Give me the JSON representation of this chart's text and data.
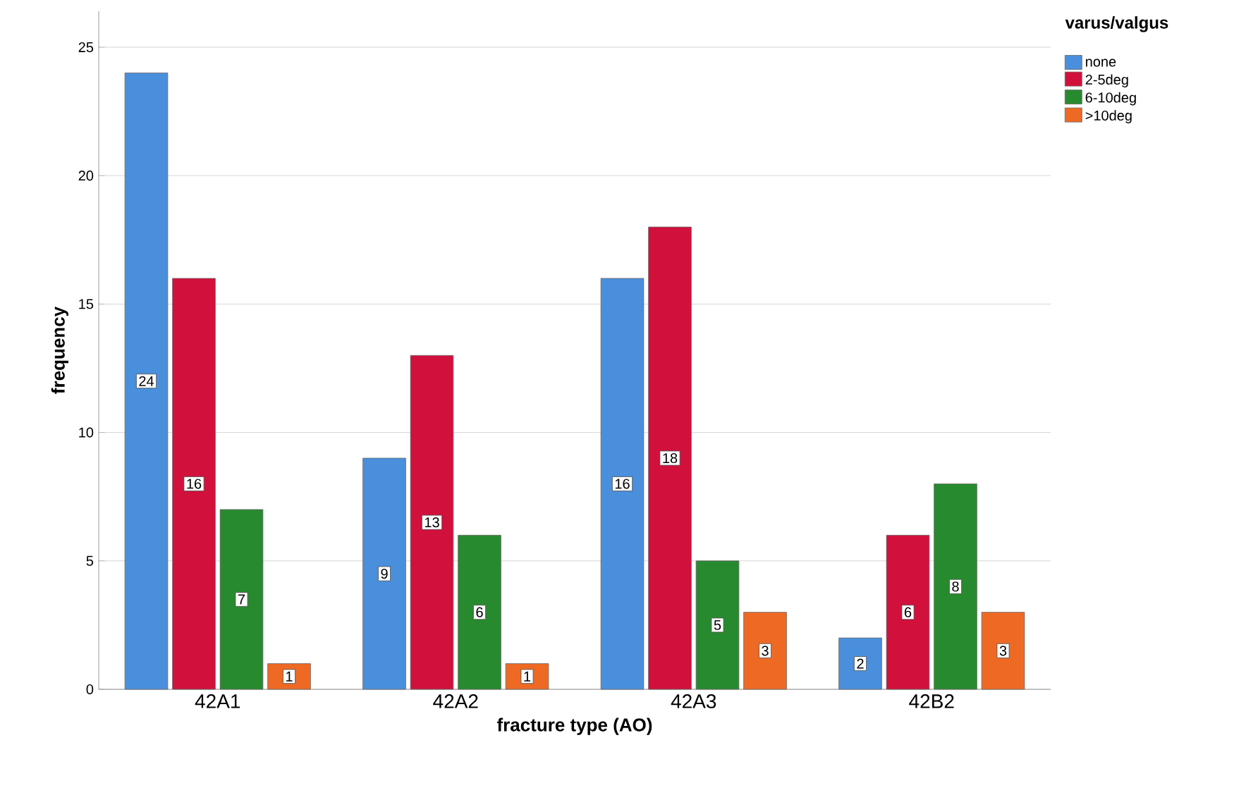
{
  "chart_data": {
    "type": "bar",
    "xlabel": "fracture type (AO)",
    "ylabel": "frequency",
    "legend_title": "varus/valgus",
    "categories": [
      "42A1",
      "42A2",
      "42A3",
      "42B2"
    ],
    "series": [
      {
        "name": "none",
        "color": "#4a8fdc",
        "values": [
          24,
          9,
          16,
          2
        ]
      },
      {
        "name": "2-5deg",
        "color": "#d2103c",
        "values": [
          16,
          13,
          18,
          6
        ]
      },
      {
        "name": "6-10deg",
        "color": "#288a2e",
        "values": [
          7,
          6,
          5,
          8
        ]
      },
      {
        "name": ">10deg",
        "color": "#ee6a24",
        "values": [
          1,
          1,
          3,
          3
        ]
      }
    ],
    "ylim": [
      0,
      26.4
    ],
    "yticks": [
      0,
      5,
      10,
      15,
      20,
      25
    ],
    "grid": "y",
    "legend": "top right",
    "data_labels": true
  }
}
